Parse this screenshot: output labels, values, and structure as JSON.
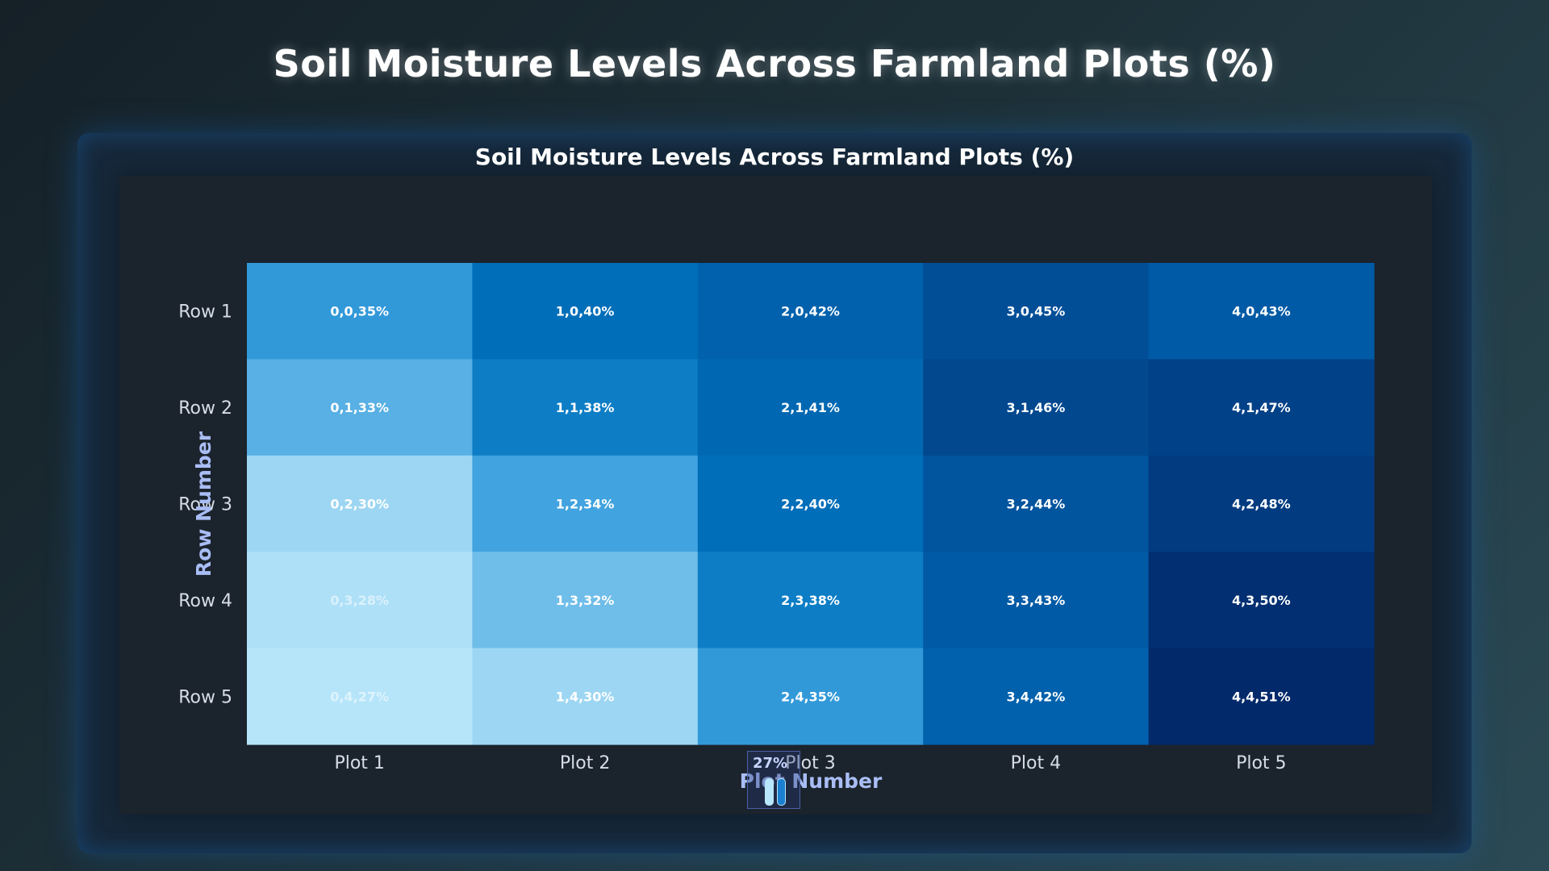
{
  "page": {
    "title": "Soil Moisture Levels Across Farmland Plots (%)"
  },
  "legend": {
    "label": "27%"
  },
  "chart_data": {
    "type": "heatmap",
    "title": "Soil Moisture Levels Across Farmland Plots (%)",
    "xlabel": "Plot Number",
    "ylabel": "Row Number",
    "x_categories": [
      "Plot 1",
      "Plot 2",
      "Plot 3",
      "Plot 4",
      "Plot 5"
    ],
    "y_categories": [
      "Row 1",
      "Row 2",
      "Row 3",
      "Row 4",
      "Row 5"
    ],
    "values": [
      [
        35,
        40,
        42,
        45,
        43
      ],
      [
        33,
        38,
        41,
        46,
        47
      ],
      [
        30,
        34,
        40,
        44,
        48
      ],
      [
        28,
        32,
        38,
        43,
        50
      ],
      [
        27,
        30,
        35,
        42,
        51
      ]
    ],
    "cell_labels": [
      [
        "0,0,35%",
        "1,0,40%",
        "2,0,42%",
        "3,0,45%",
        "4,0,43%"
      ],
      [
        "0,1,33%",
        "1,1,38%",
        "2,1,41%",
        "3,1,46%",
        "4,1,47%"
      ],
      [
        "0,2,30%",
        "1,2,34%",
        "2,2,40%",
        "3,2,44%",
        "4,2,48%"
      ],
      [
        "0,3,28%",
        "1,3,32%",
        "2,3,38%",
        "3,3,43%",
        "4,3,50%"
      ],
      [
        "0,4,27%",
        "1,4,30%",
        "2,4,35%",
        "3,4,42%",
        "4,4,51%"
      ]
    ],
    "color_range": [
      27,
      51
    ],
    "colors": {
      "low": "#b6e5fa",
      "high": "#02296a",
      "text": "#ffffff",
      "axis_title": "#a9bdf5",
      "tick": "#d6dde6"
    }
  }
}
